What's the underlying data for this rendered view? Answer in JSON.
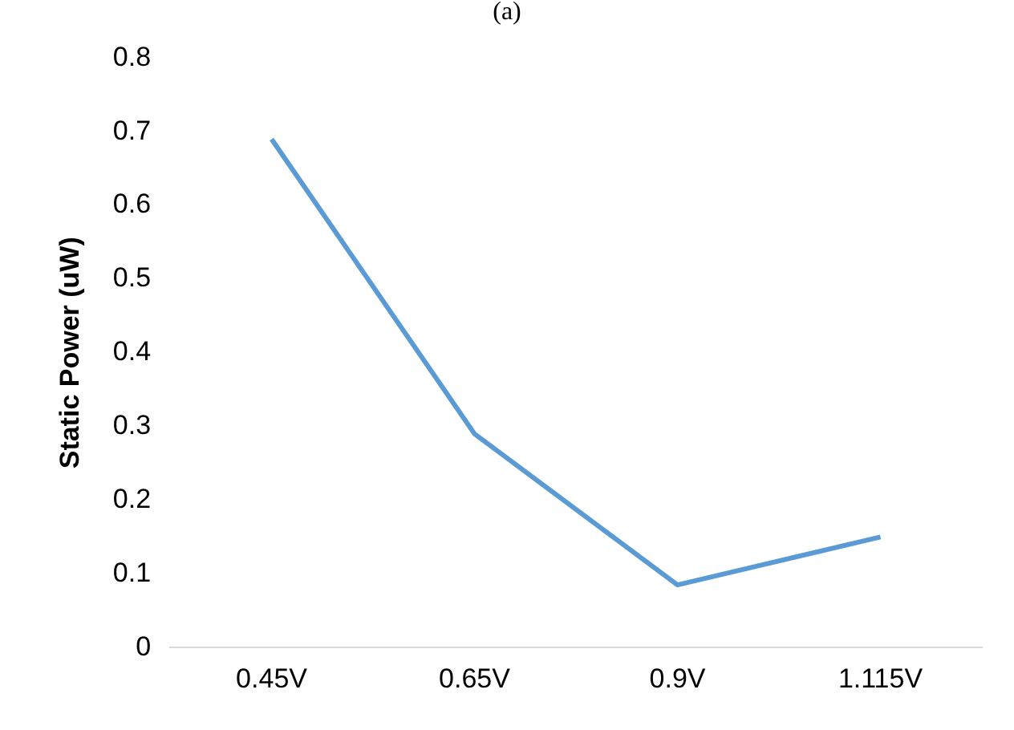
{
  "chart_data": {
    "type": "line",
    "title": "(a)",
    "ylabel": "Static Power (uW)",
    "categories": [
      "0.45V",
      "0.65V",
      "0.9V",
      "1.115V"
    ],
    "series": [
      {
        "color": "#5b9bd5",
        "values": [
          0.69,
          0.29,
          0.085,
          0.15
        ]
      }
    ],
    "ylim": [
      0,
      0.8
    ],
    "yticks": [
      0,
      0.1,
      0.2,
      0.3,
      0.4,
      0.5,
      0.6,
      0.7,
      0.8
    ],
    "grid": false,
    "legend": false,
    "marker": "none",
    "line_style": "solid"
  }
}
